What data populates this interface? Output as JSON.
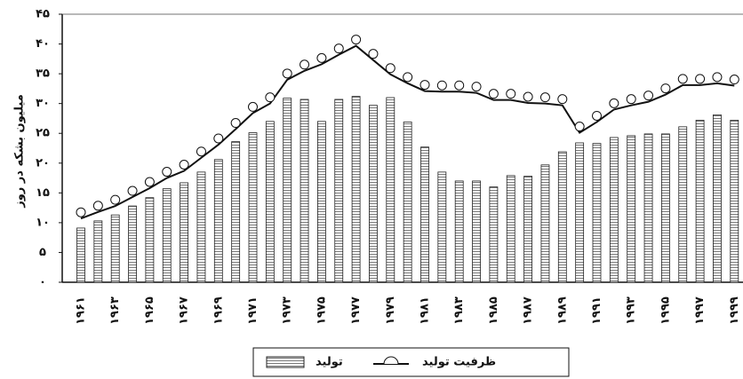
{
  "chart_data": {
    "type": "bar-line",
    "y_label": "میلیون بشکه در روز",
    "categories": [
      "۱۹۶۱",
      null,
      "۱۹۶۳",
      null,
      "۱۹۶۵",
      null,
      "۱۹۶۷",
      null,
      "۱۹۶۹",
      null,
      "۱۹۷۱",
      null,
      "۱۹۷۳",
      null,
      "۱۹۷۵",
      null,
      "۱۹۷۷",
      null,
      "۱۹۷۹",
      null,
      "۱۹۸۱",
      null,
      "۱۹۸۳",
      null,
      "۱۹۸۵",
      null,
      "۱۹۸۷",
      null,
      "۱۹۸۹",
      null,
      "۱۹۹۱",
      null,
      "۱۹۹۳",
      null,
      "۱۹۹۵",
      null,
      "۱۹۹۷",
      null,
      "۱۹۹۹"
    ],
    "series": [
      {
        "name": "تولید",
        "kind": "bar",
        "color": "#c8c8c8",
        "values": [
          9.1,
          10.3,
          11.3,
          12.8,
          14.2,
          15.7,
          16.7,
          18.5,
          20.6,
          23.6,
          25.1,
          27,
          30.9,
          30.7,
          27,
          30.7,
          31.2,
          29.7,
          31,
          26.9,
          22.7,
          18.5,
          17,
          17,
          16,
          17.9,
          17.8,
          19.7,
          21.9,
          23.4,
          23.3,
          24.3,
          24.6,
          24.9,
          24.9,
          26.1,
          27.2,
          28.1,
          27.2
        ]
      },
      {
        "name": "ظرفیت تولید",
        "kind": "line",
        "color": "#111111",
        "values": [
          10.7,
          11.8,
          12.8,
          14.3,
          15.8,
          17.5,
          18.7,
          20.9,
          23.1,
          25.7,
          28.4,
          30,
          34,
          35.5,
          36.6,
          38.2,
          39.7,
          37.3,
          34.9,
          33.4,
          32.1,
          32,
          32,
          31.8,
          30.6,
          30.6,
          30.1,
          30,
          29.7,
          25.1,
          26.9,
          29,
          29.7,
          30.3,
          31.5,
          33.1,
          33.1,
          33.4,
          33
        ]
      }
    ],
    "ylim": [
      0,
      45
    ],
    "yticks": [
      {
        "value": 0,
        "label": "۰"
      },
      {
        "value": 5,
        "label": "۵"
      },
      {
        "value": 10,
        "label": "۱۰"
      },
      {
        "value": 15,
        "label": "۱۵"
      },
      {
        "value": 20,
        "label": "۲۰"
      },
      {
        "value": 25,
        "label": "۲۵"
      },
      {
        "value": 30,
        "label": "۳۰"
      },
      {
        "value": 35,
        "label": "۳۵"
      },
      {
        "value": 40,
        "label": "۴۰"
      },
      {
        "value": 45,
        "label": "۴۵"
      }
    ]
  }
}
